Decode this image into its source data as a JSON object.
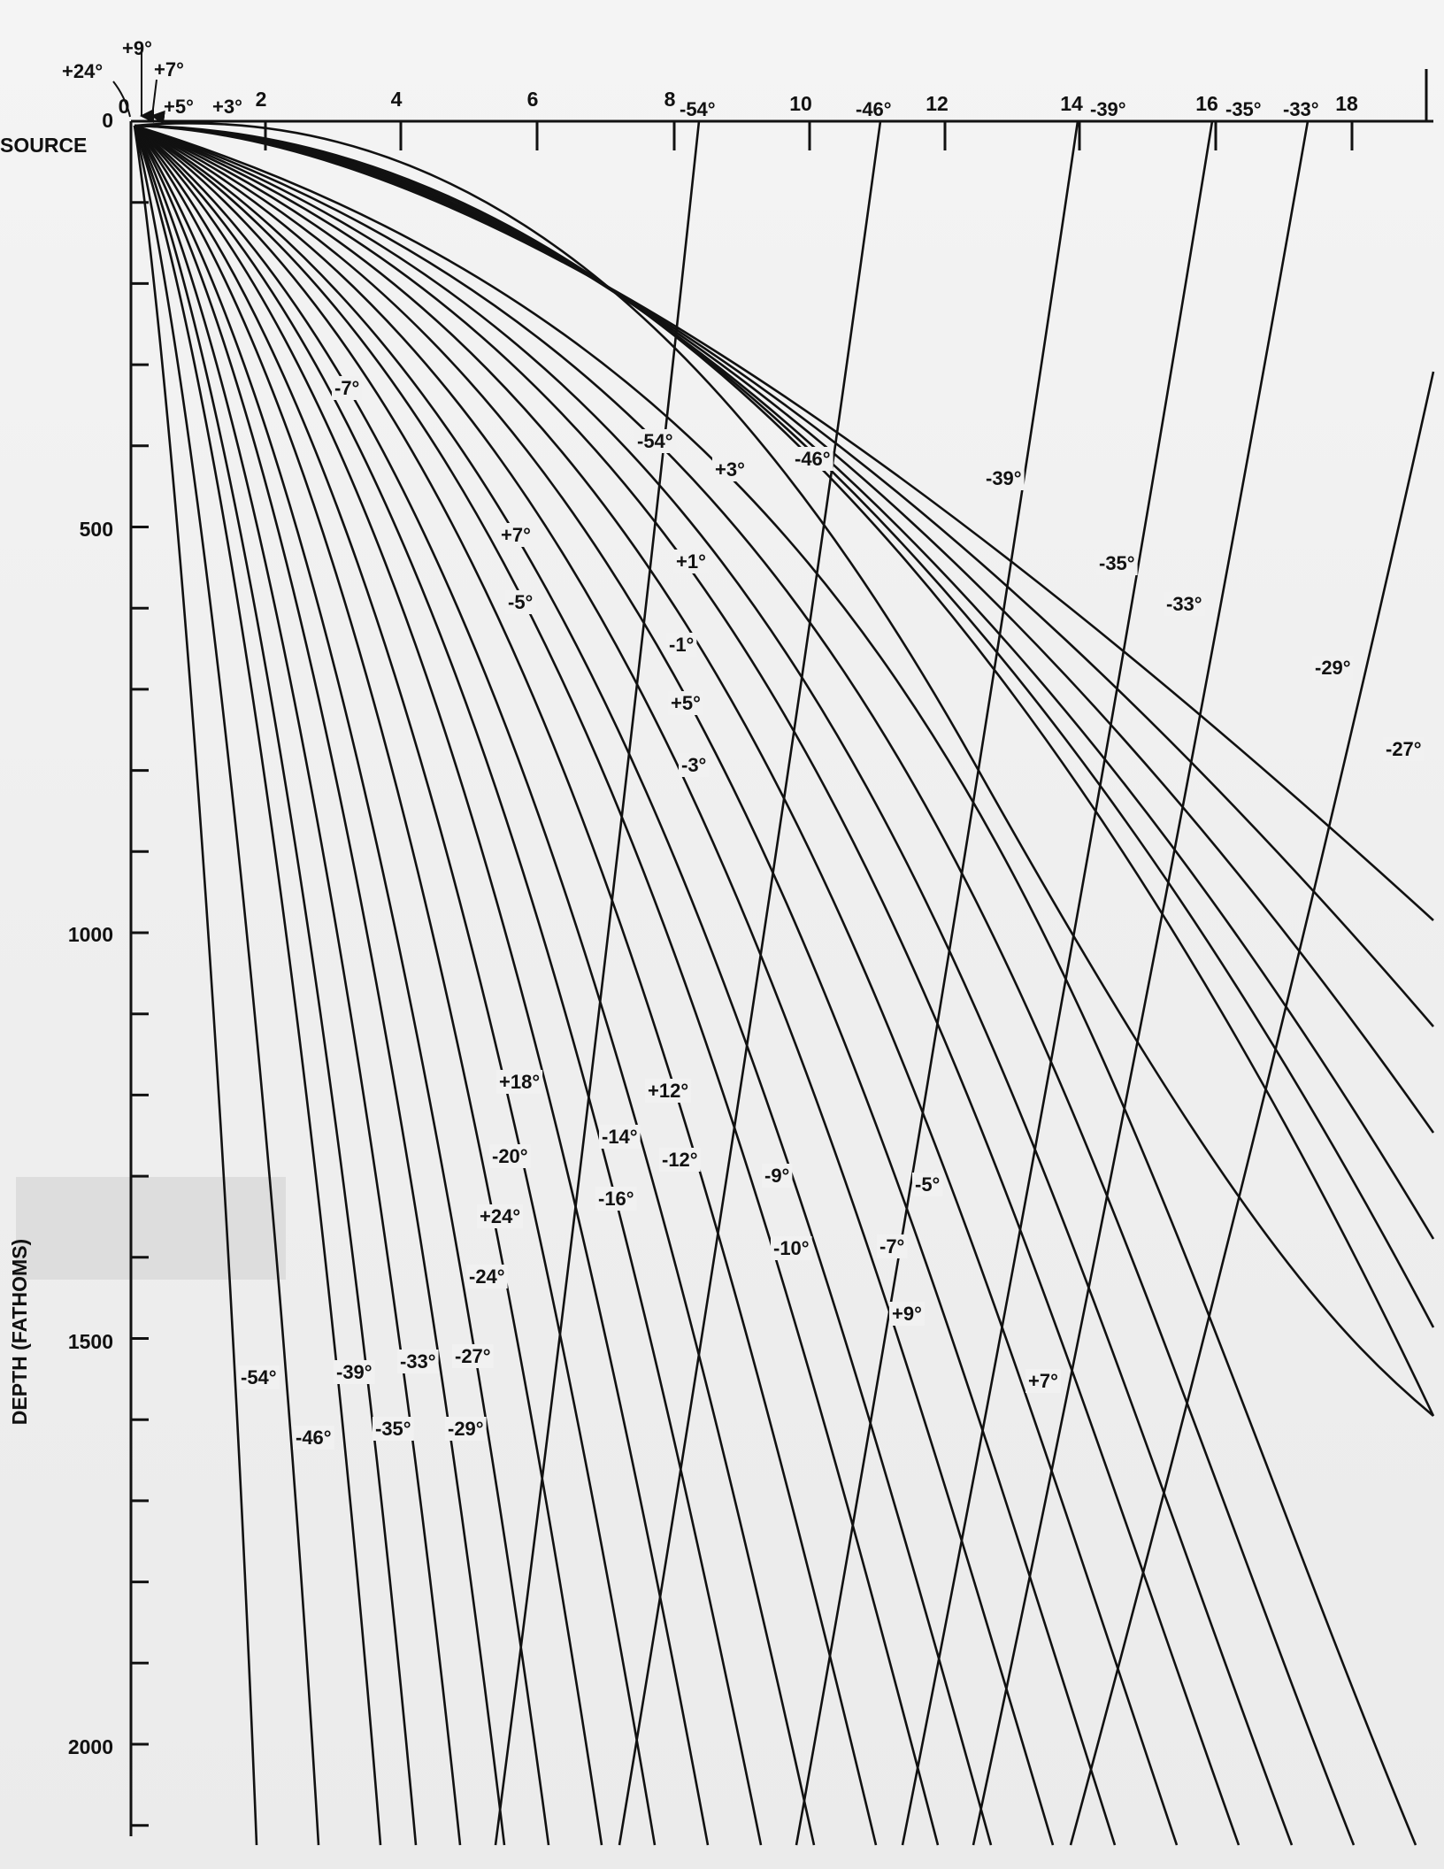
{
  "diagram": {
    "x_axis": {
      "ticks": [
        "0",
        "2",
        "4",
        "6",
        "8",
        "10",
        "12",
        "14",
        "16",
        "18"
      ]
    },
    "y_axis": {
      "label": "DEPTH (FATHOMS)",
      "ticks": [
        "0",
        "500",
        "1000",
        "1500",
        "2000"
      ]
    },
    "source_label": "SOURCE",
    "source_angle_labels": [
      "+24°",
      "+9°",
      "+7°",
      "+5°",
      "+3°"
    ],
    "top_angle_labels": [
      "-54°",
      "-46°",
      "-39°",
      "-35°",
      "-33°"
    ],
    "ray_labels": [
      "-7°",
      "-54°",
      "+3°",
      "-46°",
      "-39°",
      "+7°",
      "+1°",
      "-35°",
      "-5°",
      "-33°",
      "-1°",
      "-29°",
      "+5°",
      "-27°",
      "-3°",
      "+18°",
      "+12°",
      "-14°",
      "-20°",
      "-12°",
      "-9°",
      "-16°",
      "-5°",
      "+24°",
      "-10°",
      "-7°",
      "-24°",
      "+9°",
      "-54°",
      "-39°",
      "-33°",
      "-27°",
      "+7°",
      "-46°",
      "-35°",
      "-29°"
    ]
  }
}
